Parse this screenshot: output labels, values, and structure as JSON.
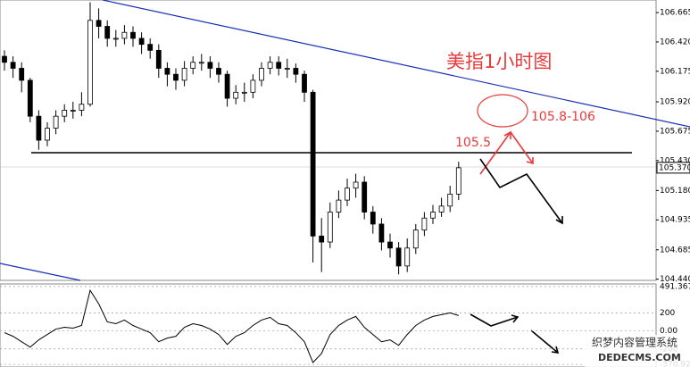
{
  "chart_data": {
    "type": "candlestick",
    "title": "美指1小时图",
    "annotations": [
      "105.8-106",
      "105.5"
    ],
    "open": [
      106.3,
      106.25,
      106.2,
      106.1,
      105.8,
      105.6,
      105.7,
      105.8,
      105.85,
      105.85,
      105.9,
      106.6,
      106.55,
      106.45,
      106.45,
      106.5,
      106.45,
      106.4,
      106.35,
      106.2,
      106.15,
      106.1,
      106.2,
      106.25,
      106.25,
      106.2,
      106.15,
      105.95,
      106.0,
      106.0,
      106.1,
      106.2,
      106.25,
      106.2,
      106.2,
      106.15,
      106.0,
      104.8,
      104.75,
      105.0,
      105.1,
      105.2,
      105.25,
      105.0,
      104.9,
      104.75,
      104.7,
      104.55,
      104.7,
      104.85,
      104.95,
      105.0,
      105.05,
      105.15
    ],
    "high": [
      106.35,
      106.3,
      106.25,
      106.12,
      105.85,
      105.75,
      105.85,
      105.9,
      105.92,
      106.0,
      106.75,
      106.7,
      106.6,
      106.52,
      106.56,
      106.55,
      106.5,
      106.45,
      106.4,
      106.25,
      106.2,
      106.26,
      106.3,
      106.32,
      106.3,
      106.25,
      106.18,
      106.06,
      106.08,
      106.15,
      106.25,
      106.3,
      106.3,
      106.28,
      106.24,
      106.18,
      106.02,
      104.95,
      105.08,
      105.18,
      105.28,
      105.32,
      105.3,
      105.05,
      104.95,
      104.82,
      104.75,
      104.78,
      104.9,
      105.0,
      105.06,
      105.12,
      105.22,
      105.42
    ],
    "low": [
      106.18,
      106.12,
      106.0,
      105.75,
      105.52,
      105.55,
      105.65,
      105.75,
      105.78,
      105.8,
      105.88,
      106.45,
      106.38,
      106.38,
      106.4,
      106.38,
      106.32,
      106.28,
      106.12,
      106.05,
      106.02,
      106.05,
      106.15,
      106.18,
      106.12,
      106.08,
      105.88,
      105.9,
      105.92,
      105.95,
      106.05,
      106.15,
      106.14,
      106.12,
      106.08,
      105.92,
      104.58,
      104.5,
      104.7,
      104.95,
      105.05,
      105.12,
      104.94,
      104.82,
      104.68,
      104.62,
      104.48,
      104.5,
      104.65,
      104.8,
      104.9,
      104.96,
      105.0,
      105.1
    ],
    "close": [
      106.25,
      106.2,
      106.1,
      105.8,
      105.6,
      105.7,
      105.8,
      105.85,
      105.85,
      105.9,
      106.6,
      106.55,
      106.45,
      106.45,
      106.5,
      106.45,
      106.4,
      106.35,
      106.2,
      106.15,
      106.1,
      106.2,
      106.25,
      106.25,
      106.2,
      106.15,
      105.95,
      106.0,
      106.0,
      106.1,
      106.2,
      106.25,
      106.2,
      106.2,
      106.15,
      106.0,
      104.8,
      104.75,
      105.0,
      105.1,
      105.2,
      105.25,
      105.0,
      104.9,
      104.75,
      104.7,
      104.55,
      104.7,
      104.85,
      104.95,
      105.0,
      105.05,
      105.15,
      105.37
    ],
    "up_color": "#ffffff",
    "down_color": "#000000",
    "ylim": [
      104.43,
      106.77
    ],
    "yticks": [
      106.665,
      {
        "value": 106.42,
        "label": "106.420"
      },
      106.175,
      {
        "value": 105.92,
        "label": "105.920"
      },
      105.675,
      {
        "value": 105.43,
        "label": "105.430"
      },
      {
        "value": 105.18,
        "label": "105.180"
      },
      104.935,
      104.685,
      {
        "value": 104.44,
        "label": "104.440"
      }
    ],
    "current_price": {
      "value": 105.37,
      "label": "105.370"
    },
    "indicator": {
      "type": "line",
      "color": "#000000",
      "values": [
        -20,
        -60,
        -120,
        -180,
        -100,
        -40,
        20,
        40,
        30,
        60,
        450,
        300,
        100,
        80,
        120,
        60,
        20,
        -20,
        -120,
        -80,
        -60,
        40,
        80,
        60,
        20,
        -40,
        -150,
        -60,
        -20,
        60,
        120,
        150,
        80,
        60,
        -20,
        -120,
        -350,
        -250,
        -40,
        60,
        120,
        160,
        40,
        -40,
        -120,
        -100,
        -160,
        -40,
        60,
        120,
        160,
        180,
        200,
        170
      ],
      "ylim": [
        -400,
        520
      ],
      "yticks": [
        491.3671,
        200,
        {
          "value": 0,
          "label": "0.00"
        },
        -200,
        -370.923
      ]
    },
    "watermark": [
      "织梦内容管理系统",
      "DEDECMS.COM"
    ]
  }
}
